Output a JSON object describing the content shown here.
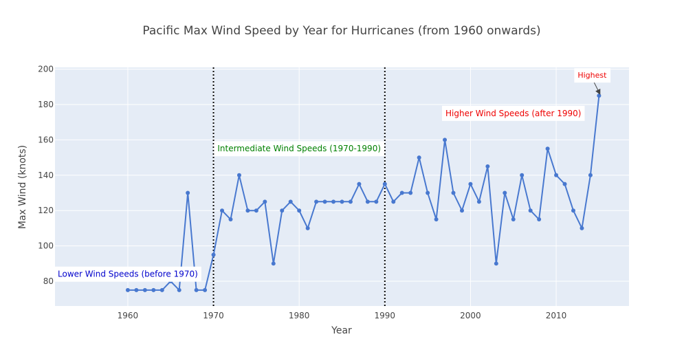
{
  "chart_data": {
    "type": "line",
    "title": "Pacific Max Wind Speed by Year for Hurricanes (from 1960 onwards)",
    "xlabel": "Year",
    "ylabel": "Max Wind (knots)",
    "xlim": [
      1951.5,
      2018.5
    ],
    "ylim": [
      66,
      201
    ],
    "x_ticks": [
      1960,
      1970,
      1980,
      1990,
      2000,
      2010
    ],
    "y_ticks": [
      80,
      100,
      120,
      140,
      160,
      180,
      200
    ],
    "grid": true,
    "legend": "none",
    "colors": {
      "line": "#4878cf",
      "plot_bg": "#e5ecf6",
      "grid": "#ffffff",
      "vline": "#000000"
    },
    "series": [
      {
        "x": [
          1960,
          1961,
          1962,
          1963,
          1964,
          1965,
          1966,
          1967,
          1968,
          1969,
          1970,
          1971,
          1972,
          1973,
          1974,
          1975,
          1976,
          1977,
          1978,
          1979,
          1980,
          1981,
          1982,
          1983,
          1984,
          1985,
          1986,
          1987,
          1988,
          1989,
          1990,
          1991,
          1992,
          1993,
          1994,
          1995,
          1996,
          1997,
          1998,
          1999,
          2000,
          2001,
          2002,
          2003,
          2004,
          2005,
          2006,
          2007,
          2008,
          2009,
          2010,
          2011,
          2012,
          2013,
          2014,
          2015
        ],
        "y": [
          75,
          75,
          75,
          75,
          75,
          80,
          75,
          130,
          75,
          75,
          95,
          120,
          115,
          140,
          120,
          120,
          125,
          90,
          120,
          125,
          120,
          110,
          125,
          125,
          125,
          125,
          125,
          135,
          125,
          125,
          135,
          125,
          130,
          130,
          150,
          130,
          115,
          160,
          130,
          120,
          135,
          125,
          145,
          90,
          130,
          115,
          140,
          120,
          115,
          155,
          140,
          135,
          120,
          110,
          140,
          185
        ]
      }
    ],
    "vlines": [
      1970,
      1990
    ],
    "annotations": [
      {
        "text": "Lower Wind Speeds (before 1970)",
        "x": 1960,
        "y": 84,
        "color": "#0000cc"
      },
      {
        "text": "Intermediate Wind Speeds (1970-1990)",
        "x": 1980,
        "y": 155,
        "color": "#008000"
      },
      {
        "text": "Higher Wind Speeds (after 1990)",
        "x": 2005,
        "y": 175,
        "color": "#ee0000"
      },
      {
        "text": "Highest",
        "x": 2015,
        "y": 185,
        "color": "#ee0000",
        "arrow": true
      }
    ]
  }
}
